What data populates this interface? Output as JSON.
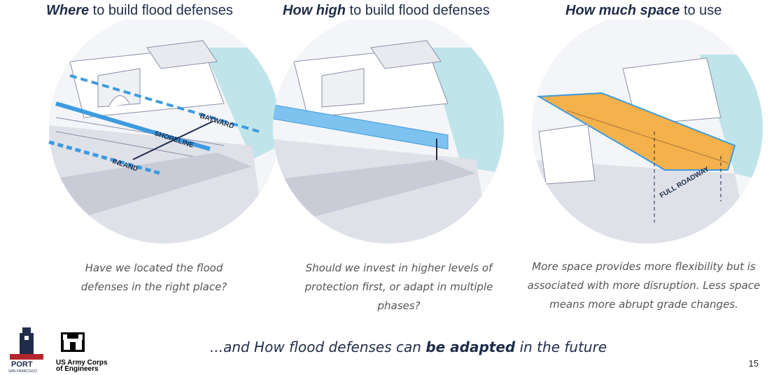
{
  "columns": [
    {
      "title_bold": "Where",
      "title_rest": " to build flood defenses",
      "caption": "Have we located the flood defenses in the right place?",
      "labels": {
        "bayward": "BAYWARD",
        "shoreline": "SHORELINE",
        "inland": "INLAND"
      }
    },
    {
      "title_bold": "How high",
      "title_rest": " to build flood defenses",
      "caption": "Should we invest in higher levels of protection first, or adapt in multiple phases?"
    },
    {
      "title_bold": "How much space",
      "title_rest": " to use",
      "caption": "More space provides more flexibility but is associated with more disruption. Less space means more abrupt grade changes.",
      "labels": {
        "full_roadway": "FULL ROADWAY"
      }
    }
  ],
  "footer": {
    "prefix": "...and How flood defenses can ",
    "bold": "be adapted",
    "suffix": " in the future",
    "page_number": "15",
    "port_logo_text": "PORT",
    "port_logo_sub": "SAN FRANCISCO",
    "usace_line1": "US Army Corps",
    "usace_line2": "of Engineers"
  },
  "colors": {
    "navy": "#1f2d4a",
    "blue": "#3d9be0",
    "water": "#bfe4ea",
    "orange": "#f5b14b"
  }
}
